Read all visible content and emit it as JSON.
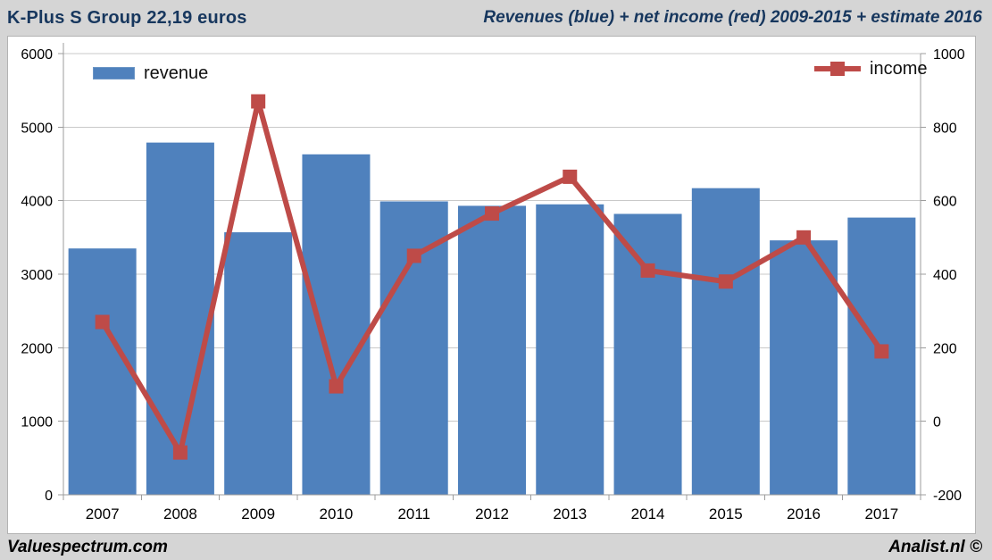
{
  "header": {
    "left_title": "K-Plus S Group 22,19 euros",
    "right_title": "Revenues (blue) + net income (red) 2009-2015 + estimate 2016"
  },
  "legend": {
    "revenue_label": "revenue",
    "income_label": "income"
  },
  "footer": {
    "left": "Valuespectrum.com",
    "right": "Analist.nl ©"
  },
  "colors": {
    "bar": "#4f81bd",
    "line": "#be4b48",
    "marker": "#be4b48",
    "title": "#17375e",
    "grid": "#c9c9c9",
    "axis": "#9c9c9c",
    "tick_text": "#000000",
    "chart_bg": "#ffffff",
    "page_bg": "#d5d5d5"
  },
  "chart_data": {
    "type": "bar",
    "subtype": "bar+line-combo",
    "title": "K-Plus S Group revenues and net income 2007-2017",
    "categories": [
      "2007",
      "2008",
      "2009",
      "2010",
      "2011",
      "2012",
      "2013",
      "2014",
      "2015",
      "2016",
      "2017"
    ],
    "series": [
      {
        "name": "revenue",
        "type": "bar",
        "axis": "left",
        "values": [
          3350,
          4790,
          3570,
          4630,
          3990,
          3930,
          3950,
          3820,
          4170,
          3460,
          3770
        ]
      },
      {
        "name": "income",
        "type": "line",
        "axis": "right",
        "values": [
          270,
          -85,
          870,
          95,
          450,
          565,
          665,
          410,
          380,
          500,
          190
        ]
      }
    ],
    "left_axis": {
      "min": 0,
      "max": 6000,
      "ticks": [
        0,
        1000,
        2000,
        3000,
        4000,
        5000,
        6000
      ]
    },
    "right_axis": {
      "min": -200,
      "max": 1000,
      "ticks": [
        -200,
        0,
        200,
        400,
        600,
        800,
        1000
      ]
    },
    "grid": "horizontal",
    "legend_position": "top-inside",
    "xlabel": "",
    "ylabel_left": "",
    "ylabel_right": ""
  }
}
